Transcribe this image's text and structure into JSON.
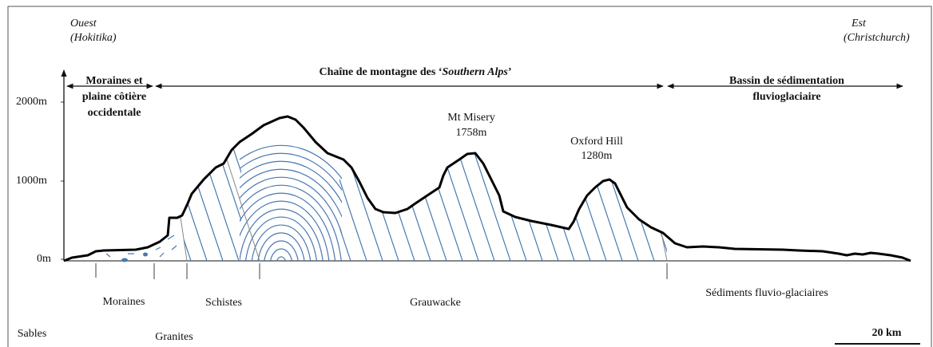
{
  "header": {
    "west": [
      "Ouest",
      "(Hokitika)"
    ],
    "east": [
      "Est",
      "(Christchurch)"
    ]
  },
  "y_axis": {
    "labels": [
      "2000m",
      "1000m",
      "0m"
    ]
  },
  "zones": [
    {
      "lines": [
        "Moraines et",
        "plaine côtière",
        "occidentale"
      ]
    },
    {
      "text_before": "Chaîne de montagne des ‘",
      "italic": "Southern Alps",
      "text_after": "’"
    },
    {
      "lines": [
        "Bassin de sédimentation",
        "fluvioglaciaire"
      ]
    }
  ],
  "peaks": [
    {
      "name": "Mt Misery",
      "height": "1758m"
    },
    {
      "name": "Oxford Hill",
      "height": "1280m"
    }
  ],
  "formations": [
    "Moraines",
    "Schistes",
    "Grauwacke",
    "Sédiments fluvio-glaciaires",
    "Sables",
    "Granites"
  ],
  "scale": "20 km"
}
